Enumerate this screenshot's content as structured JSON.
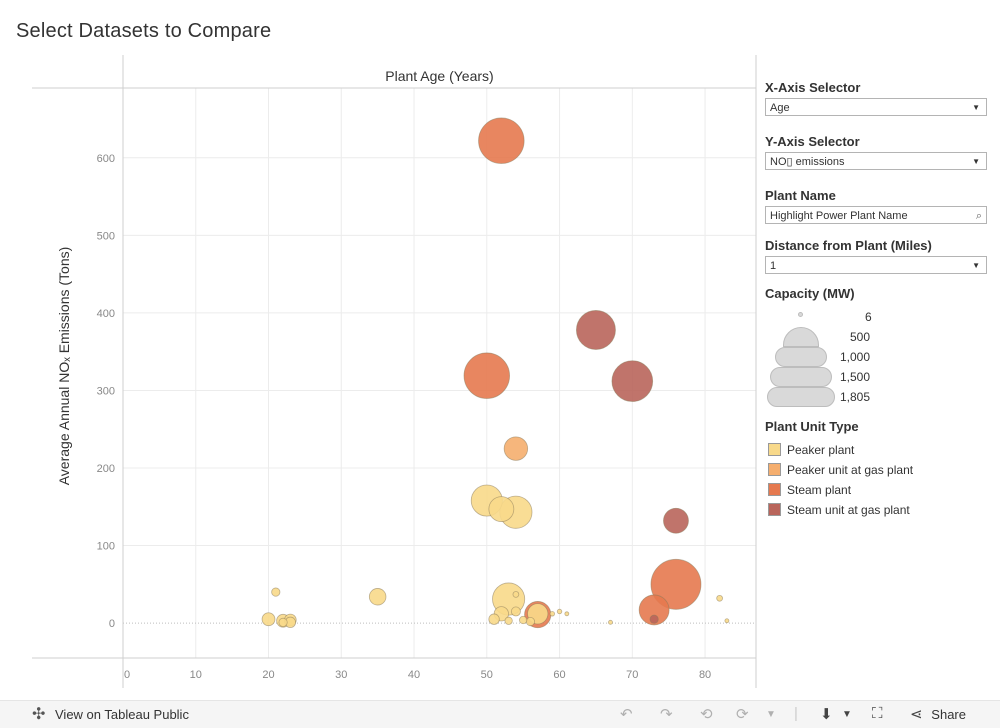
{
  "page": {
    "title": "Select Datasets to Compare"
  },
  "controls": {
    "x_axis": {
      "label": "X-Axis Selector",
      "value": "Age"
    },
    "y_axis": {
      "label": "Y-Axis Selector",
      "value": "NO▯ emissions"
    },
    "plant_name": {
      "label": "Plant Name",
      "placeholder": "Highlight Power Plant Name"
    },
    "distance": {
      "label": "Distance from Plant (Miles)",
      "value": "1"
    }
  },
  "size_legend": {
    "title": "Capacity (MW)",
    "entries": [
      "6",
      "500",
      "1,000",
      "1,500",
      "1,805"
    ]
  },
  "color_legend": {
    "title": "Plant Unit Type",
    "entries": [
      {
        "label": "Peaker plant",
        "color": "#f8d98a"
      },
      {
        "label": "Peaker unit at gas plant",
        "color": "#f5ae6e"
      },
      {
        "label": "Steam plant",
        "color": "#e5794f"
      },
      {
        "label": "Steam unit at gas plant",
        "color": "#b9655b"
      }
    ]
  },
  "footer": {
    "view_label": "View on Tableau Public",
    "share_label": "Share"
  },
  "chart_data": {
    "type": "scatter",
    "title": "Plant Age (Years)",
    "xlabel": "",
    "ylabel": "Average Annual NOₓ Emissions (Tons)",
    "xlim": [
      0,
      87
    ],
    "ylim": [
      -45,
      690
    ],
    "x_ticks": [
      0,
      10,
      20,
      30,
      40,
      50,
      60,
      70,
      80
    ],
    "y_ticks": [
      0,
      100,
      200,
      300,
      400,
      500,
      600
    ],
    "grid": true,
    "legend_position": "right",
    "points": [
      {
        "x": 52,
        "y": 622,
        "size": 1500,
        "type": "Steam plant"
      },
      {
        "x": 65,
        "y": 378,
        "size": 1100,
        "type": "Steam unit at gas plant"
      },
      {
        "x": 50,
        "y": 319,
        "size": 1500,
        "type": "Steam plant"
      },
      {
        "x": 70,
        "y": 312,
        "size": 1200,
        "type": "Steam unit at gas plant"
      },
      {
        "x": 54,
        "y": 225,
        "size": 400,
        "type": "Peaker unit at gas plant"
      },
      {
        "x": 50,
        "y": 158,
        "size": 700,
        "type": "Peaker plant"
      },
      {
        "x": 52,
        "y": 147,
        "size": 450,
        "type": "Peaker plant"
      },
      {
        "x": 54,
        "y": 143,
        "size": 750,
        "type": "Peaker plant"
      },
      {
        "x": 76,
        "y": 132,
        "size": 450,
        "type": "Steam unit at gas plant"
      },
      {
        "x": 76,
        "y": 50,
        "size": 1805,
        "type": "Steam plant"
      },
      {
        "x": 73,
        "y": 17,
        "size": 650,
        "type": "Steam plant"
      },
      {
        "x": 73,
        "y": 5,
        "size": 50,
        "type": "Steam unit at gas plant"
      },
      {
        "x": 57,
        "y": 11,
        "size": 500,
        "type": "Steam plant"
      },
      {
        "x": 53,
        "y": 31,
        "size": 750,
        "type": "Peaker plant"
      },
      {
        "x": 57,
        "y": 12,
        "size": 300,
        "type": "Peaker plant"
      },
      {
        "x": 52,
        "y": 12,
        "size": 150,
        "type": "Peaker plant"
      },
      {
        "x": 54,
        "y": 15,
        "size": 60,
        "type": "Peaker plant"
      },
      {
        "x": 54,
        "y": 37,
        "size": 25,
        "type": "Peaker plant"
      },
      {
        "x": 51,
        "y": 5,
        "size": 80,
        "type": "Peaker plant"
      },
      {
        "x": 53,
        "y": 3,
        "size": 40,
        "type": "Peaker plant"
      },
      {
        "x": 55,
        "y": 4,
        "size": 40,
        "type": "Peaker plant"
      },
      {
        "x": 56,
        "y": 2,
        "size": 50,
        "type": "Peaker plant"
      },
      {
        "x": 59,
        "y": 12,
        "size": 15,
        "type": "Peaker plant"
      },
      {
        "x": 60,
        "y": 15,
        "size": 15,
        "type": "Peaker plant"
      },
      {
        "x": 61,
        "y": 12,
        "size": 10,
        "type": "Peaker plant"
      },
      {
        "x": 35,
        "y": 34,
        "size": 200,
        "type": "Peaker plant"
      },
      {
        "x": 21,
        "y": 40,
        "size": 50,
        "type": "Peaker plant"
      },
      {
        "x": 20,
        "y": 5,
        "size": 120,
        "type": "Peaker plant"
      },
      {
        "x": 22,
        "y": 3,
        "size": 120,
        "type": "Peaker plant"
      },
      {
        "x": 23,
        "y": 4,
        "size": 100,
        "type": "Peaker plant"
      },
      {
        "x": 23,
        "y": 1,
        "size": 80,
        "type": "Peaker plant"
      },
      {
        "x": 22,
        "y": 1,
        "size": 50,
        "type": "Peaker plant"
      },
      {
        "x": 67,
        "y": 1,
        "size": 10,
        "type": "Peaker plant"
      },
      {
        "x": 82,
        "y": 32,
        "size": 25,
        "type": "Peaker plant"
      },
      {
        "x": 83,
        "y": 3,
        "size": 10,
        "type": "Peaker plant"
      }
    ]
  }
}
